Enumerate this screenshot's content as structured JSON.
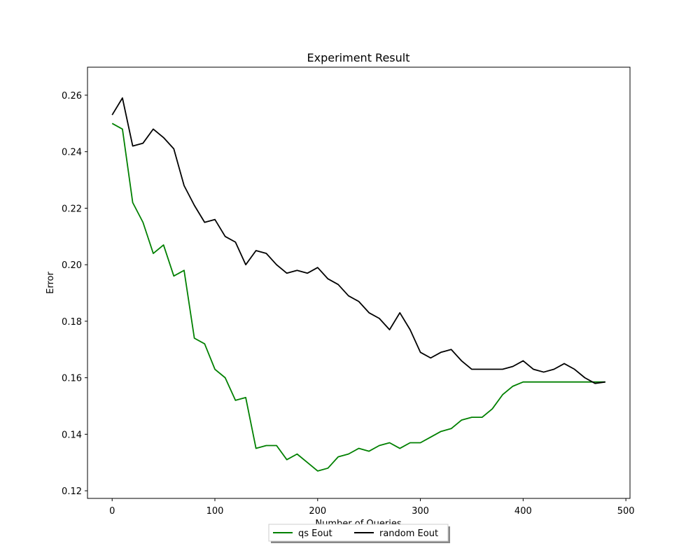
{
  "chart_data": {
    "type": "line",
    "title": "Experiment Result",
    "xlabel": "Number of Queries",
    "ylabel": "Error",
    "x": [
      0,
      10,
      20,
      30,
      40,
      50,
      60,
      70,
      80,
      90,
      100,
      110,
      120,
      130,
      140,
      150,
      160,
      170,
      180,
      190,
      200,
      210,
      220,
      230,
      240,
      250,
      260,
      270,
      280,
      290,
      300,
      310,
      320,
      330,
      340,
      350,
      360,
      370,
      380,
      390,
      400,
      410,
      420,
      430,
      440,
      450,
      460,
      470,
      480
    ],
    "series": [
      {
        "name": "qs Eout",
        "color": "#008000",
        "values": [
          0.25,
          0.248,
          0.222,
          0.215,
          0.204,
          0.207,
          0.196,
          0.198,
          0.174,
          0.172,
          0.163,
          0.16,
          0.152,
          0.153,
          0.135,
          0.136,
          0.136,
          0.131,
          0.133,
          0.13,
          0.127,
          0.128,
          0.132,
          0.133,
          0.135,
          0.134,
          0.136,
          0.137,
          0.135,
          0.137,
          0.137,
          0.139,
          0.141,
          0.142,
          0.145,
          0.146,
          0.146,
          0.149,
          0.154,
          0.157,
          0.1585,
          0.1585,
          0.1585,
          0.1585,
          0.1585,
          0.1585,
          0.1585,
          0.1585,
          0.1585
        ]
      },
      {
        "name": "random Eout",
        "color": "#000000",
        "values": [
          0.253,
          0.259,
          0.242,
          0.243,
          0.248,
          0.245,
          0.241,
          0.228,
          0.221,
          0.215,
          0.216,
          0.21,
          0.208,
          0.2,
          0.205,
          0.204,
          0.2,
          0.197,
          0.198,
          0.197,
          0.199,
          0.195,
          0.193,
          0.189,
          0.187,
          0.183,
          0.181,
          0.177,
          0.183,
          0.177,
          0.169,
          0.167,
          0.169,
          0.17,
          0.166,
          0.163,
          0.163,
          0.163,
          0.163,
          0.164,
          0.166,
          0.163,
          0.162,
          0.163,
          0.165,
          0.163,
          0.16,
          0.158,
          0.1585
        ]
      }
    ],
    "xlim": [
      -24,
      504
    ],
    "ylim": [
      0.1173,
      0.2699
    ],
    "xticks": [
      0,
      100,
      200,
      300,
      400,
      500
    ],
    "yticks": [
      0.12,
      0.14,
      0.16,
      0.18,
      {
        "value": 0.2,
        "label": "0.20"
      },
      0.22,
      0.24,
      0.26
    ],
    "legend": "below"
  }
}
